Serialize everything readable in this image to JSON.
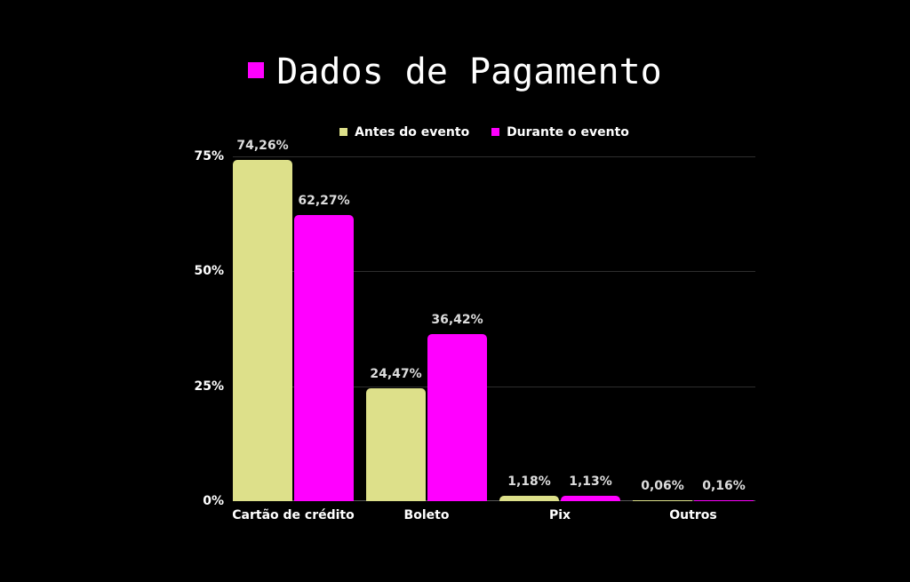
{
  "chart_data": {
    "type": "bar",
    "title": "Dados de Pagamento",
    "categories": [
      "Cartão de crédito",
      "Boleto",
      "Pix",
      "Outros"
    ],
    "series": [
      {
        "name": "Antes do evento",
        "color": "#dde08a",
        "values": [
          74.26,
          24.47,
          1.18,
          0.06
        ],
        "labels": [
          "74,26%",
          "24,47%",
          "1,18%",
          "0,06%"
        ]
      },
      {
        "name": "Durante o evento",
        "color": "#ff00ff",
        "values": [
          62.27,
          36.42,
          1.13,
          0.16
        ],
        "labels": [
          "62,27%",
          "36,42%",
          "1,13%",
          "0,16%"
        ]
      }
    ],
    "xlabel": "",
    "ylabel": "",
    "ylim": [
      0,
      75
    ],
    "yticks": [
      "0%",
      "25%",
      "50%",
      "75%"
    ],
    "grid": true,
    "legend_position": "top"
  },
  "title_marker_color": "#ff00ff"
}
